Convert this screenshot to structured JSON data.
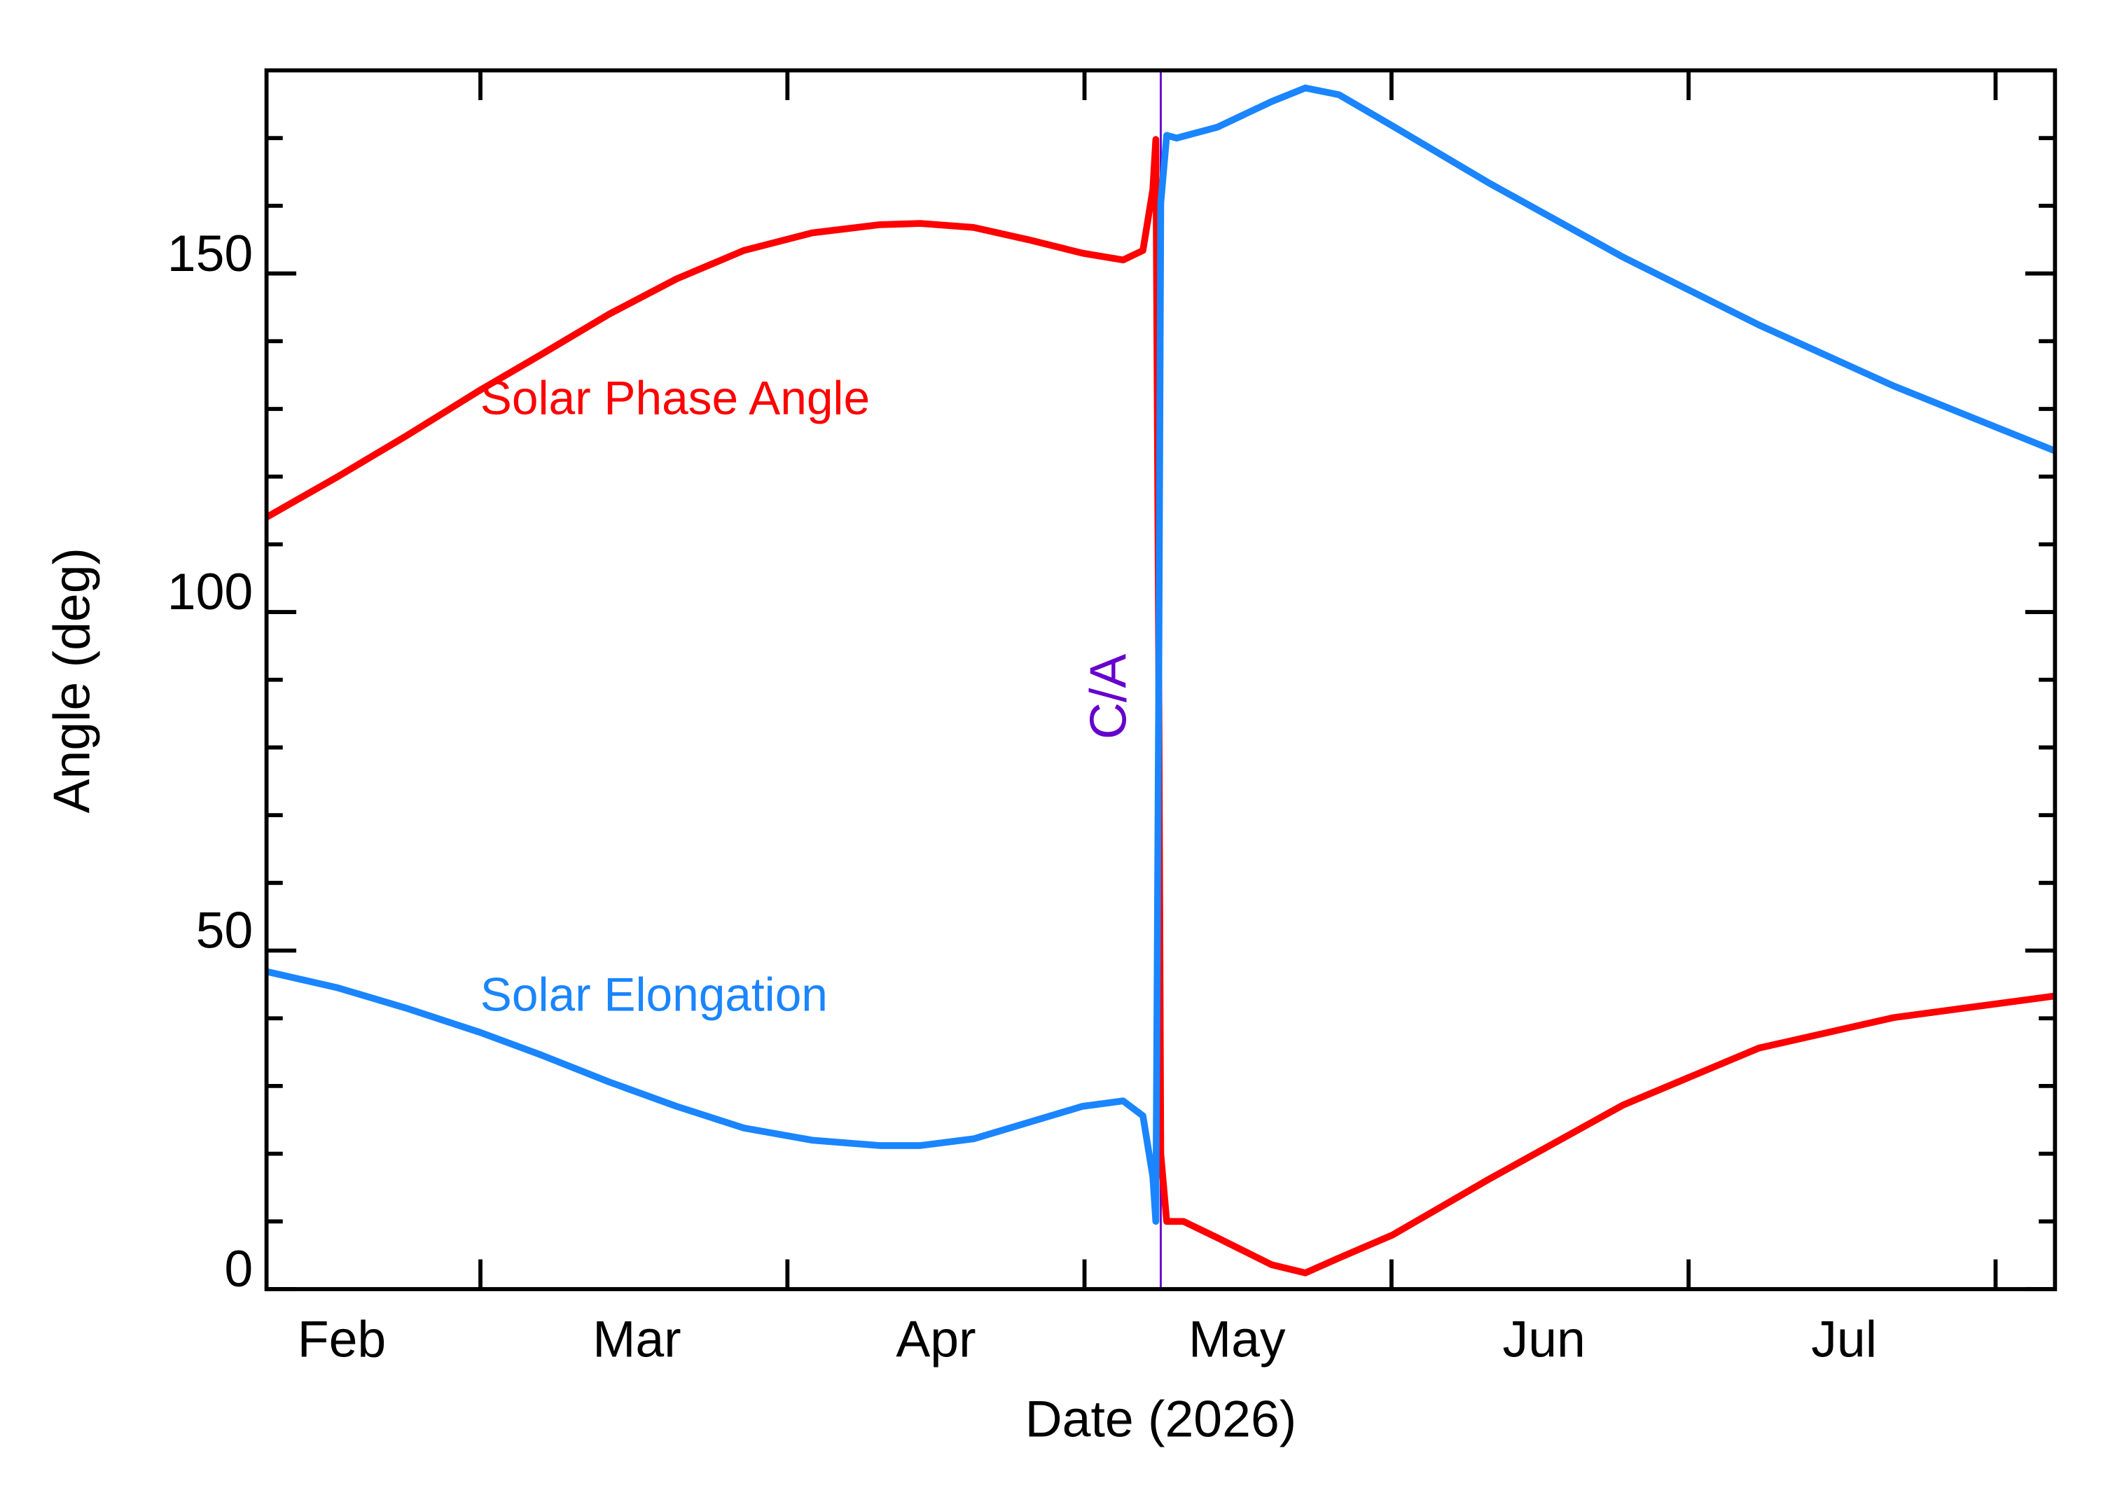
{
  "chart_data": {
    "type": "line",
    "x_label": "Date (2026)",
    "y_label": "Angle (deg)",
    "xlim": [
      38.4,
      219.0
    ],
    "ylim": [
      0,
      180
    ],
    "xticks": [
      {
        "value": 46,
        "label": "Feb"
      },
      {
        "value": 75.8,
        "label": "Mar"
      },
      {
        "value": 106,
        "label": "Apr"
      },
      {
        "value": 136.4,
        "label": "May"
      },
      {
        "value": 167.4,
        "label": "Jun"
      },
      {
        "value": 197.7,
        "label": "Jul"
      }
    ],
    "x_minor_ticks": [
      60,
      91,
      121,
      152,
      182,
      213
    ],
    "yticks": [
      0,
      50,
      100,
      150
    ],
    "y_minor_ticks": [
      10,
      20,
      30,
      40,
      60,
      70,
      80,
      90,
      110,
      120,
      130,
      140,
      160,
      170
    ],
    "series": [
      {
        "name": "Solar Phase Angle",
        "color": "#ff0000",
        "x": [
          38.4,
          45.6,
          52.5,
          60.0,
          66.1,
          73.0,
          79.8,
          86.6,
          93.5,
          100.3,
          104.4,
          109.8,
          115.3,
          120.8,
          124.9,
          126.9,
          127.9,
          128.2,
          128.5,
          128.7,
          129.3,
          131.0,
          134.4,
          139.9,
          143.3,
          146.7,
          152.1,
          161.8,
          175.4,
          189.1,
          202.7,
          219.0
        ],
        "values": [
          114.0,
          120.0,
          126.0,
          132.8,
          138.0,
          144.0,
          149.2,
          153.4,
          156.0,
          157.2,
          157.4,
          156.8,
          155.0,
          153.0,
          152.0,
          153.4,
          162.4,
          169.8,
          90,
          20,
          10,
          10,
          7.6,
          3.6,
          2.4,
          4.6,
          8,
          16.2,
          27.2,
          35.6,
          40.1,
          43.3
        ]
      },
      {
        "name": "Solar Elongation",
        "color": "#1a85ff",
        "x": [
          38.4,
          45.6,
          52.5,
          60.0,
          66.1,
          73.0,
          79.8,
          86.6,
          93.5,
          100.3,
          104.4,
          109.8,
          115.3,
          120.8,
          124.9,
          126.9,
          127.9,
          128.2,
          128.5,
          128.7,
          129.3,
          130.3,
          134.4,
          139.9,
          143.3,
          146.7,
          152.1,
          161.8,
          175.4,
          189.1,
          202.7,
          219.0
        ],
        "values": [
          46.9,
          44.5,
          41.5,
          37.9,
          34.6,
          30.6,
          27.0,
          23.8,
          22.0,
          21.2,
          21.2,
          22.2,
          24.6,
          27.0,
          27.8,
          25.6,
          16.6,
          10.0,
          90.5,
          160.4,
          170.4,
          170.0,
          171.6,
          175.4,
          177.4,
          176.4,
          171.8,
          163.4,
          152.4,
          142.4,
          133.4,
          123.8
        ]
      }
    ],
    "vline": {
      "x": 128.7,
      "label": "C/A",
      "color": "#6600cc"
    }
  }
}
